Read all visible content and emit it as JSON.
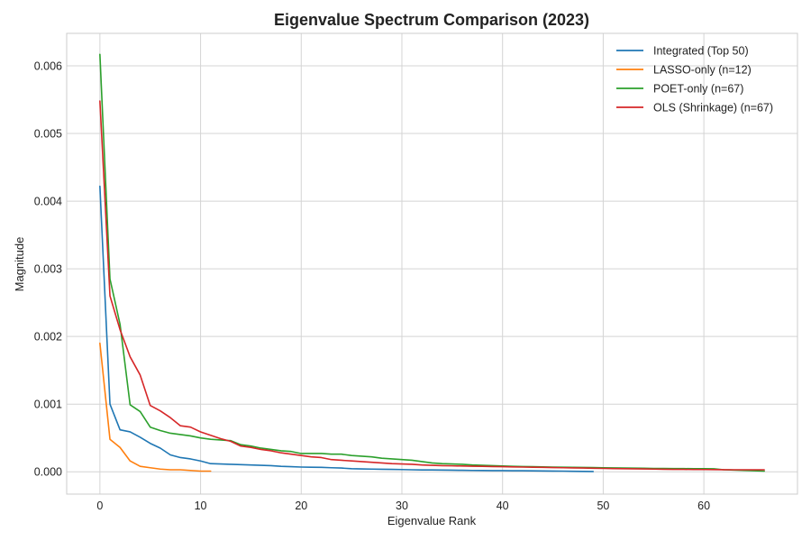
{
  "chart_data": {
    "type": "line",
    "title": "Eigenvalue Spectrum Comparison (2023)",
    "xlabel": "Eigenvalue Rank",
    "ylabel": "Magnitude",
    "xlim": [
      -3.3,
      69.3
    ],
    "ylim": [
      -0.00033,
      0.00648
    ],
    "xticks": [
      0,
      10,
      20,
      30,
      40,
      50,
      60
    ],
    "xtick_labels": [
      "0",
      "10",
      "20",
      "30",
      "40",
      "50",
      "60"
    ],
    "yticks": [
      0,
      0.001,
      0.002,
      0.003,
      0.004,
      0.005,
      0.006
    ],
    "ytick_labels": [
      "0.000",
      "0.001",
      "0.002",
      "0.003",
      "0.004",
      "0.005",
      "0.006"
    ],
    "grid": true,
    "legend_position": "top-right",
    "series": [
      {
        "name": "Integrated (Top 50)",
        "color": "#1f77b4",
        "x": [
          0,
          1,
          2,
          3,
          4,
          5,
          6,
          7,
          8,
          9,
          10,
          11,
          12,
          13,
          14,
          15,
          16,
          17,
          18,
          19,
          20,
          21,
          22,
          23,
          24,
          25,
          26,
          27,
          28,
          29,
          30,
          31,
          32,
          33,
          34,
          35,
          36,
          37,
          38,
          39,
          40,
          41,
          42,
          43,
          44,
          45,
          46,
          47,
          48,
          49
        ],
        "values": [
          0.00422,
          0.001,
          0.00062,
          0.00059,
          0.00051,
          0.00042,
          0.00035,
          0.00025,
          0.00021,
          0.00019,
          0.00016,
          0.00012,
          0.000115,
          0.00011,
          0.000105,
          0.0001,
          9.5e-05,
          9e-05,
          8e-05,
          7.5e-05,
          7e-05,
          6.8e-05,
          6.5e-05,
          6e-05,
          5.5e-05,
          4.5e-05,
          4.2e-05,
          4e-05,
          3.8e-05,
          3.5e-05,
          3.3e-05,
          3e-05,
          2.8e-05,
          2.7e-05,
          2.6e-05,
          2.4e-05,
          2.2e-05,
          2e-05,
          1.9e-05,
          1.8e-05,
          1.7e-05,
          1.6e-05,
          1.5e-05,
          1.4e-05,
          1.2e-05,
          1.1e-05,
          1e-05,
          8e-06,
          6e-06,
          4e-06
        ]
      },
      {
        "name": "LASSO-only (n=12)",
        "color": "#ff7f0e",
        "x": [
          0,
          1,
          2,
          3,
          4,
          5,
          6,
          7,
          8,
          9,
          10,
          11
        ],
        "values": [
          0.0019,
          0.00048,
          0.00036,
          0.00016,
          8e-05,
          6e-05,
          4e-05,
          3e-05,
          3e-05,
          2e-05,
          1e-05,
          1e-05
        ]
      },
      {
        "name": "POET-only (n=67)",
        "color": "#2ca02c",
        "x": [
          0,
          1,
          2,
          3,
          4,
          5,
          6,
          7,
          8,
          9,
          10,
          11,
          12,
          13,
          14,
          15,
          16,
          17,
          18,
          19,
          20,
          21,
          22,
          23,
          24,
          25,
          26,
          27,
          28,
          29,
          30,
          31,
          32,
          33,
          34,
          35,
          36,
          37,
          38,
          39,
          40,
          41,
          42,
          43,
          44,
          45,
          46,
          47,
          48,
          49,
          50,
          51,
          52,
          53,
          54,
          55,
          56,
          57,
          58,
          59,
          60,
          61,
          62,
          63,
          64,
          65,
          66
        ],
        "values": [
          0.00617,
          0.00285,
          0.00218,
          0.00099,
          0.00089,
          0.00066,
          0.00061,
          0.00057,
          0.00055,
          0.00053,
          0.0005,
          0.00048,
          0.00047,
          0.00046,
          0.0004,
          0.00038,
          0.00035,
          0.00033,
          0.00031,
          0.0003,
          0.00027,
          0.00027,
          0.00027,
          0.00026,
          0.00026,
          0.00024,
          0.00023,
          0.00022,
          0.0002,
          0.00019,
          0.00018,
          0.00017,
          0.00015,
          0.00013,
          0.00012,
          0.000115,
          0.00011,
          0.0001,
          9.5e-05,
          9e-05,
          8.5e-05,
          8e-05,
          7.8e-05,
          7.5e-05,
          7.2e-05,
          7e-05,
          6.8e-05,
          6.6e-05,
          6.4e-05,
          6.2e-05,
          6e-05,
          5.8e-05,
          5.6e-05,
          5.4e-05,
          5.2e-05,
          5e-05,
          4.9e-05,
          4.8e-05,
          4.7e-05,
          4.6e-05,
          4.5e-05,
          4.4e-05,
          3e-05,
          2.5e-05,
          2e-05,
          1.5e-05,
          1e-05
        ]
      },
      {
        "name": "OLS (Shrinkage) (n=67)",
        "color": "#d62728",
        "x": [
          0,
          1,
          2,
          3,
          4,
          5,
          6,
          7,
          8,
          9,
          10,
          11,
          12,
          13,
          14,
          15,
          16,
          17,
          18,
          19,
          20,
          21,
          22,
          23,
          24,
          25,
          26,
          27,
          28,
          29,
          30,
          31,
          32,
          33,
          34,
          35,
          36,
          37,
          38,
          39,
          40,
          41,
          42,
          43,
          44,
          45,
          46,
          47,
          48,
          49,
          50,
          51,
          52,
          53,
          54,
          55,
          56,
          57,
          58,
          59,
          60,
          61,
          62,
          63,
          64,
          65,
          66
        ],
        "values": [
          0.00548,
          0.0026,
          0.0021,
          0.0017,
          0.00143,
          0.00098,
          0.0009,
          0.0008,
          0.00068,
          0.00066,
          0.00059,
          0.00054,
          0.00049,
          0.00045,
          0.00038,
          0.00036,
          0.00033,
          0.00031,
          0.00028,
          0.00026,
          0.00024,
          0.00022,
          0.00021,
          0.00018,
          0.00017,
          0.00016,
          0.00015,
          0.00014,
          0.00013,
          0.00012,
          0.000115,
          0.00011,
          0.0001,
          9.5e-05,
          9e-05,
          8.8e-05,
          8.5e-05,
          8.2e-05,
          8e-05,
          7.8e-05,
          7.5e-05,
          7.2e-05,
          7e-05,
          6.8e-05,
          6.5e-05,
          6.2e-05,
          6e-05,
          5.8e-05,
          5.5e-05,
          5.2e-05,
          5e-05,
          4.8e-05,
          4.6e-05,
          4.4e-05,
          4.2e-05,
          4e-05,
          3.8e-05,
          3.6e-05,
          3.5e-05,
          3.4e-05,
          3.3e-05,
          3.2e-05,
          3.1e-05,
          3e-05,
          3e-05,
          3e-05,
          3e-05
        ]
      }
    ]
  }
}
